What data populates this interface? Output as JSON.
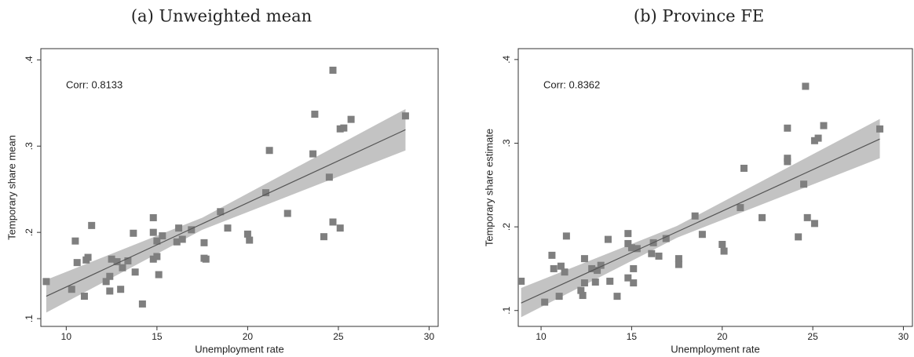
{
  "chart_data": [
    {
      "type": "scatter",
      "title": "(a) Unweighted mean",
      "xlabel": "Unemployment rate",
      "ylabel": "Temporary share mean",
      "annotation": "Corr: 0.8133",
      "marker_color": "#7f7f7f",
      "line_color": "#555555",
      "band_color": "#c3c3c3",
      "x": [
        8.9,
        10.3,
        10.5,
        10.6,
        11.0,
        11.1,
        11.2,
        11.4,
        12.2,
        12.4,
        12.4,
        12.5,
        12.8,
        13.0,
        13.1,
        13.4,
        13.7,
        13.8,
        14.2,
        14.8,
        14.8,
        14.8,
        15.0,
        15.0,
        15.1,
        15.3,
        16.1,
        16.2,
        16.4,
        16.9,
        17.6,
        17.6,
        17.7,
        18.5,
        18.9,
        20.0,
        20.1,
        21.0,
        21.2,
        22.2,
        23.6,
        23.7,
        24.2,
        24.5,
        24.7,
        24.7,
        25.1,
        25.1,
        25.3,
        25.7,
        28.7
      ],
      "values": [
        0.143,
        0.134,
        0.19,
        0.165,
        0.126,
        0.168,
        0.171,
        0.208,
        0.143,
        0.132,
        0.149,
        0.169,
        0.166,
        0.134,
        0.159,
        0.167,
        0.199,
        0.154,
        0.117,
        0.217,
        0.2,
        0.169,
        0.19,
        0.172,
        0.151,
        0.196,
        0.189,
        0.205,
        0.192,
        0.203,
        0.188,
        0.17,
        0.169,
        0.224,
        0.205,
        0.198,
        0.191,
        0.246,
        0.295,
        0.222,
        0.291,
        0.337,
        0.195,
        0.264,
        0.388,
        0.212,
        0.205,
        0.32,
        0.321,
        0.331,
        0.335
      ],
      "fit_x": [
        8.9,
        17.5,
        28.7
      ],
      "fit": [
        0.126,
        0.21,
        0.319
      ],
      "ci_lower": [
        0.107,
        0.203,
        0.295
      ],
      "ci_upper": [
        0.145,
        0.217,
        0.343
      ],
      "xlim": [
        8.6,
        30.5
      ],
      "ylim": [
        0.091,
        0.413
      ],
      "xticks": [
        10,
        15,
        20,
        25,
        30
      ],
      "yticks": [
        {
          "value": 0.1,
          "label": ".1"
        },
        {
          "value": 0.2,
          "label": ".2"
        },
        {
          "value": 0.3,
          "label": ".3"
        },
        {
          "value": 0.4,
          "label": ".4"
        }
      ]
    },
    {
      "type": "scatter",
      "title": "(b) Province FE",
      "xlabel": "Unemployment rate",
      "ylabel": "Temporary share estimate",
      "annotation": "Corr: 0.8362",
      "marker_color": "#7f7f7f",
      "line_color": "#555555",
      "band_color": "#c3c3c3",
      "x": [
        8.9,
        10.2,
        10.6,
        10.7,
        11.0,
        11.1,
        11.3,
        11.4,
        12.2,
        12.3,
        12.4,
        12.4,
        12.8,
        13.0,
        13.1,
        13.3,
        13.7,
        13.8,
        14.2,
        14.8,
        14.8,
        14.8,
        15.0,
        15.1,
        15.1,
        15.3,
        16.1,
        16.2,
        16.5,
        16.9,
        17.6,
        17.6,
        18.5,
        18.9,
        20.0,
        20.1,
        21.0,
        21.2,
        22.2,
        23.6,
        23.6,
        23.6,
        24.2,
        24.5,
        24.6,
        24.7,
        25.1,
        25.1,
        25.3,
        25.6,
        28.7
      ],
      "values": [
        0.135,
        0.11,
        0.166,
        0.15,
        0.117,
        0.153,
        0.146,
        0.189,
        0.124,
        0.118,
        0.133,
        0.162,
        0.15,
        0.134,
        0.148,
        0.154,
        0.185,
        0.135,
        0.117,
        0.192,
        0.18,
        0.139,
        0.175,
        0.15,
        0.133,
        0.174,
        0.168,
        0.181,
        0.165,
        0.186,
        0.162,
        0.155,
        0.213,
        0.191,
        0.179,
        0.171,
        0.223,
        0.27,
        0.211,
        0.282,
        0.278,
        0.318,
        0.188,
        0.251,
        0.368,
        0.211,
        0.204,
        0.303,
        0.306,
        0.321,
        0.317
      ],
      "fit_x": [
        8.9,
        17.5,
        28.7
      ],
      "fit": [
        0.109,
        0.194,
        0.305
      ],
      "ci_lower": [
        0.092,
        0.187,
        0.282
      ],
      "ci_upper": [
        0.127,
        0.201,
        0.329
      ],
      "xlim": [
        8.74,
        30.5
      ],
      "ylim": [
        0.081,
        0.413
      ],
      "xticks": [
        10,
        15,
        20,
        25,
        30
      ],
      "yticks": [
        {
          "value": 0.1,
          "label": ".1"
        },
        {
          "value": 0.2,
          "label": ".2"
        },
        {
          "value": 0.3,
          "label": ".3"
        },
        {
          "value": 0.4,
          "label": ".4"
        }
      ]
    }
  ]
}
